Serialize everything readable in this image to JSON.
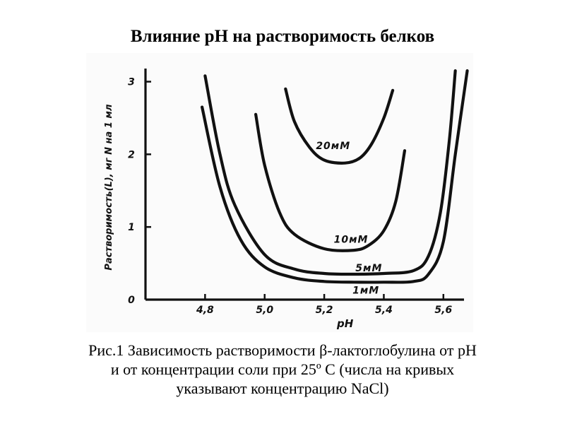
{
  "slide": {
    "title": "Влияние pH на растворимость белков"
  },
  "caption": {
    "line1": "Рис.1 Зависимость растворимости β-лактоглобулина от pH",
    "line2": "и от концентрации соли при 25º С (числа на кривых",
    "line3": "указывают концентрацию NaCl)"
  },
  "chart_data": {
    "type": "line",
    "title": "",
    "xlabel": "pH",
    "ylabel": "Растворимость(L), мг N на 1 мл",
    "xlim": [
      4.6,
      5.7
    ],
    "ylim": [
      0,
      3.2
    ],
    "x_ticks": [
      "4,8",
      "5,0",
      "5,2",
      "5,4",
      "5,6"
    ],
    "x_tick_values": [
      4.8,
      5.0,
      5.2,
      5.4,
      5.6
    ],
    "y_ticks": [
      "0",
      "1",
      "2",
      "3"
    ],
    "y_tick_values": [
      0,
      1,
      2,
      3
    ],
    "grid": false,
    "series": [
      {
        "name": "1мМ",
        "x": [
          4.79,
          4.85,
          4.92,
          5.0,
          5.1,
          5.2,
          5.3,
          5.4,
          5.5,
          5.55,
          5.6,
          5.64,
          5.68
        ],
        "y": [
          2.65,
          1.55,
          0.82,
          0.45,
          0.3,
          0.25,
          0.24,
          0.24,
          0.25,
          0.35,
          0.8,
          2.0,
          3.15
        ]
      },
      {
        "name": "5мМ",
        "x": [
          4.8,
          4.85,
          4.9,
          5.0,
          5.1,
          5.2,
          5.3,
          5.4,
          5.5,
          5.55,
          5.59,
          5.62,
          5.64
        ],
        "y": [
          3.08,
          2.0,
          1.3,
          0.62,
          0.42,
          0.36,
          0.35,
          0.36,
          0.4,
          0.6,
          1.2,
          2.2,
          3.15
        ]
      },
      {
        "name": "10мМ",
        "x": [
          4.97,
          5.0,
          5.05,
          5.1,
          5.2,
          5.3,
          5.35,
          5.4,
          5.44,
          5.47
        ],
        "y": [
          2.55,
          1.85,
          1.2,
          0.9,
          0.7,
          0.68,
          0.75,
          0.95,
          1.35,
          2.05
        ]
      },
      {
        "name": "20мМ",
        "x": [
          5.07,
          5.1,
          5.15,
          5.2,
          5.27,
          5.32,
          5.36,
          5.4,
          5.43
        ],
        "y": [
          2.9,
          2.45,
          2.1,
          1.92,
          1.88,
          1.95,
          2.15,
          2.5,
          2.88
        ]
      }
    ]
  }
}
